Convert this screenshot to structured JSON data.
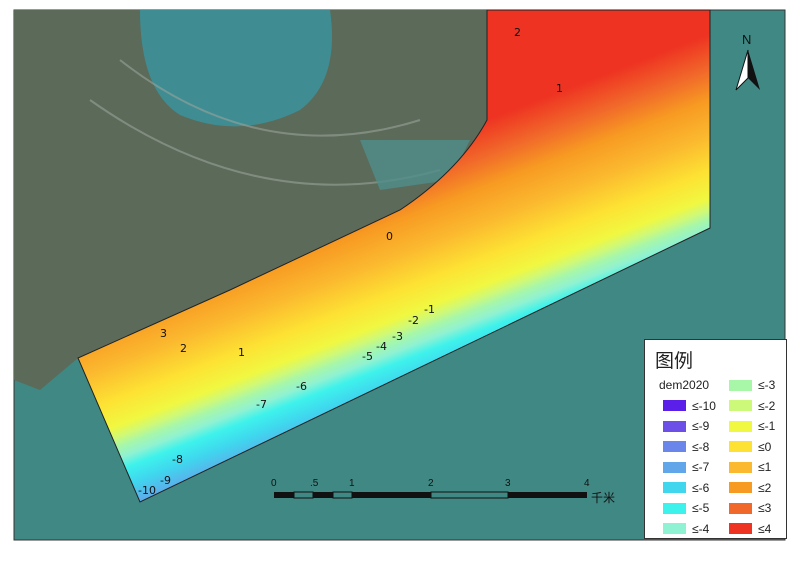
{
  "map": {
    "north_label": "N",
    "contour_labels": [
      "2",
      "1",
      "0",
      "-1",
      "-2",
      "-3",
      "-4",
      "-5",
      "-6",
      "-7",
      "-8",
      "-9",
      "-10",
      "3",
      "2",
      "1"
    ],
    "colors": {
      "sea": "#3f8883",
      "land": "#5c6a5a",
      "lake": "#3f8d93"
    }
  },
  "legend": {
    "title": "图例",
    "field": "dem2020",
    "items": [
      {
        "label": "≤-10",
        "color": "#5a1fe8"
      },
      {
        "label": "≤-9",
        "color": "#6b4fe6"
      },
      {
        "label": "≤-8",
        "color": "#6b86ea"
      },
      {
        "label": "≤-7",
        "color": "#62a6ea"
      },
      {
        "label": "≤-6",
        "color": "#3fd6ee"
      },
      {
        "label": "≤-5",
        "color": "#3ef2ec"
      },
      {
        "label": "≤-4",
        "color": "#8ff2d2"
      },
      {
        "label": "≤-3",
        "color": "#a8f7a8"
      },
      {
        "label": "≤-2",
        "color": "#cdf97a"
      },
      {
        "label": "≤-1",
        "color": "#f0f841"
      },
      {
        "label": "≤0",
        "color": "#fde233"
      },
      {
        "label": "≤1",
        "color": "#fbb92f"
      },
      {
        "label": "≤2",
        "color": "#f79a22"
      },
      {
        "label": "≤3",
        "color": "#f1692a"
      },
      {
        "label": "≤4",
        "color": "#ee3322"
      }
    ]
  },
  "scalebar": {
    "ticks": [
      "0",
      ".5",
      "1",
      "2",
      "3",
      "4"
    ],
    "unit": "千米"
  }
}
